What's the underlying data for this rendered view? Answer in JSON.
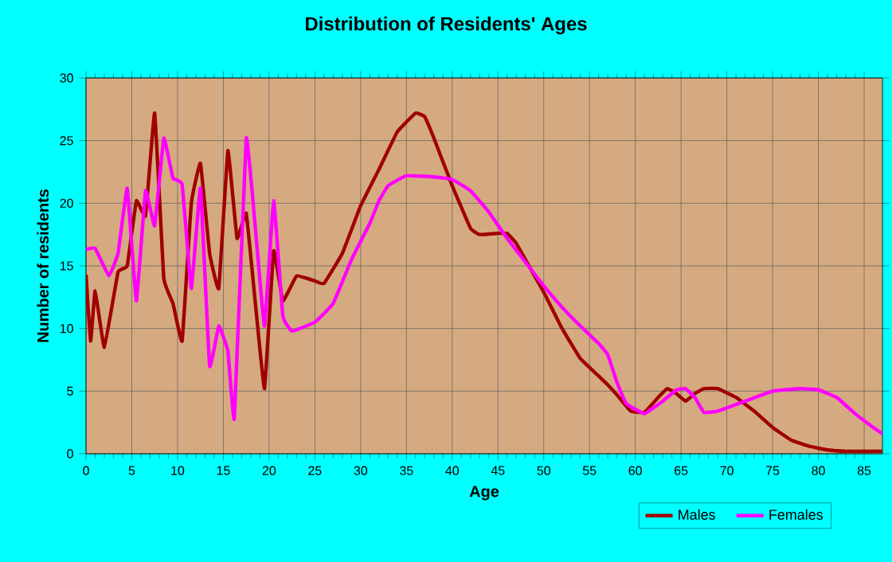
{
  "chart_data": {
    "type": "line",
    "title": "Distribution of Residents' Ages",
    "xlabel": "Age",
    "ylabel": "Number of residents",
    "xlim": [
      0,
      87
    ],
    "ylim": [
      0,
      30
    ],
    "xticks": [
      0,
      5,
      10,
      15,
      20,
      25,
      30,
      35,
      40,
      45,
      50,
      55,
      60,
      65,
      70,
      75,
      80,
      85
    ],
    "yticks": [
      0,
      5,
      10,
      15,
      20,
      25,
      30
    ],
    "grid": true,
    "legend": "bottom",
    "marker": "none",
    "line_style": "solid",
    "series": [
      {
        "name": "Males",
        "color": "#a00000",
        "x": [
          0,
          0.5,
          1,
          2,
          3.5,
          4.5,
          5.5,
          6.5,
          7.5,
          8.5,
          9.5,
          10.5,
          11.5,
          12.5,
          13.5,
          14.5,
          15.5,
          16.5,
          17.5,
          18.5,
          19.5,
          20.5,
          21.5,
          23,
          25,
          26,
          28,
          30,
          32,
          34,
          36,
          37,
          38,
          40,
          42,
          43,
          45,
          46,
          47,
          48,
          50,
          52,
          54,
          56,
          57,
          58,
          59.5,
          61,
          62.5,
          63.5,
          64.5,
          65.5,
          66.5,
          67.5,
          69,
          71,
          73,
          75,
          77,
          79,
          81,
          83,
          87
        ],
        "values": [
          14.3,
          9,
          13,
          8.5,
          14.5,
          15,
          20.2,
          19,
          27.2,
          14,
          12,
          9,
          20,
          23.2,
          16,
          13.2,
          24.2,
          17.2,
          19.2,
          12,
          5.2,
          16.2,
          12.2,
          14.2,
          13.8,
          13.6,
          16,
          19.8,
          22.7,
          25.7,
          27.2,
          26.9,
          25.2,
          21.4,
          18,
          17.5,
          17.6,
          17.6,
          16.8,
          15.5,
          12.9,
          10,
          7.6,
          6.2,
          5.5,
          4.7,
          3.4,
          3.3,
          4.5,
          5.2,
          4.8,
          4.2,
          4.8,
          5.2,
          5.2,
          4.5,
          3.4,
          2.1,
          1.1,
          0.6,
          0.3,
          0.2,
          0.2
        ]
      },
      {
        "name": "Females",
        "color": "#ff00ff",
        "x": [
          0,
          1,
          2.5,
          3.5,
          4.5,
          5.5,
          6.5,
          7.5,
          8.5,
          9.5,
          10.5,
          11.5,
          12.5,
          13.5,
          14.5,
          15.5,
          16.2,
          17.5,
          18.5,
          19.5,
          20.5,
          21.5,
          22.5,
          25,
          27,
          29,
          31,
          32,
          33,
          35,
          38,
          40,
          42,
          44,
          46,
          48,
          50,
          52,
          54,
          56,
          57,
          58,
          59,
          61,
          63,
          64.5,
          65.5,
          66.5,
          67.5,
          69,
          72,
          75,
          78,
          80,
          82,
          84,
          86,
          87
        ],
        "values": [
          16.3,
          16.4,
          14.2,
          16,
          21.2,
          12.2,
          21,
          18.2,
          25.2,
          22,
          21.5,
          13.2,
          21.2,
          7,
          10.2,
          8.2,
          2.8,
          25.2,
          18,
          10.2,
          20.2,
          11,
          9.8,
          10.5,
          12,
          15.5,
          18.4,
          20.2,
          21.4,
          22.2,
          22.1,
          21.9,
          21,
          19.3,
          17.2,
          15.3,
          13.4,
          11.7,
          10.2,
          8.8,
          7.9,
          5.7,
          4,
          3.2,
          4.2,
          5.1,
          5.2,
          4.5,
          3.3,
          3.4,
          4.2,
          5,
          5.2,
          5.1,
          4.5,
          3.2,
          2.1,
          1.6
        ]
      }
    ]
  }
}
